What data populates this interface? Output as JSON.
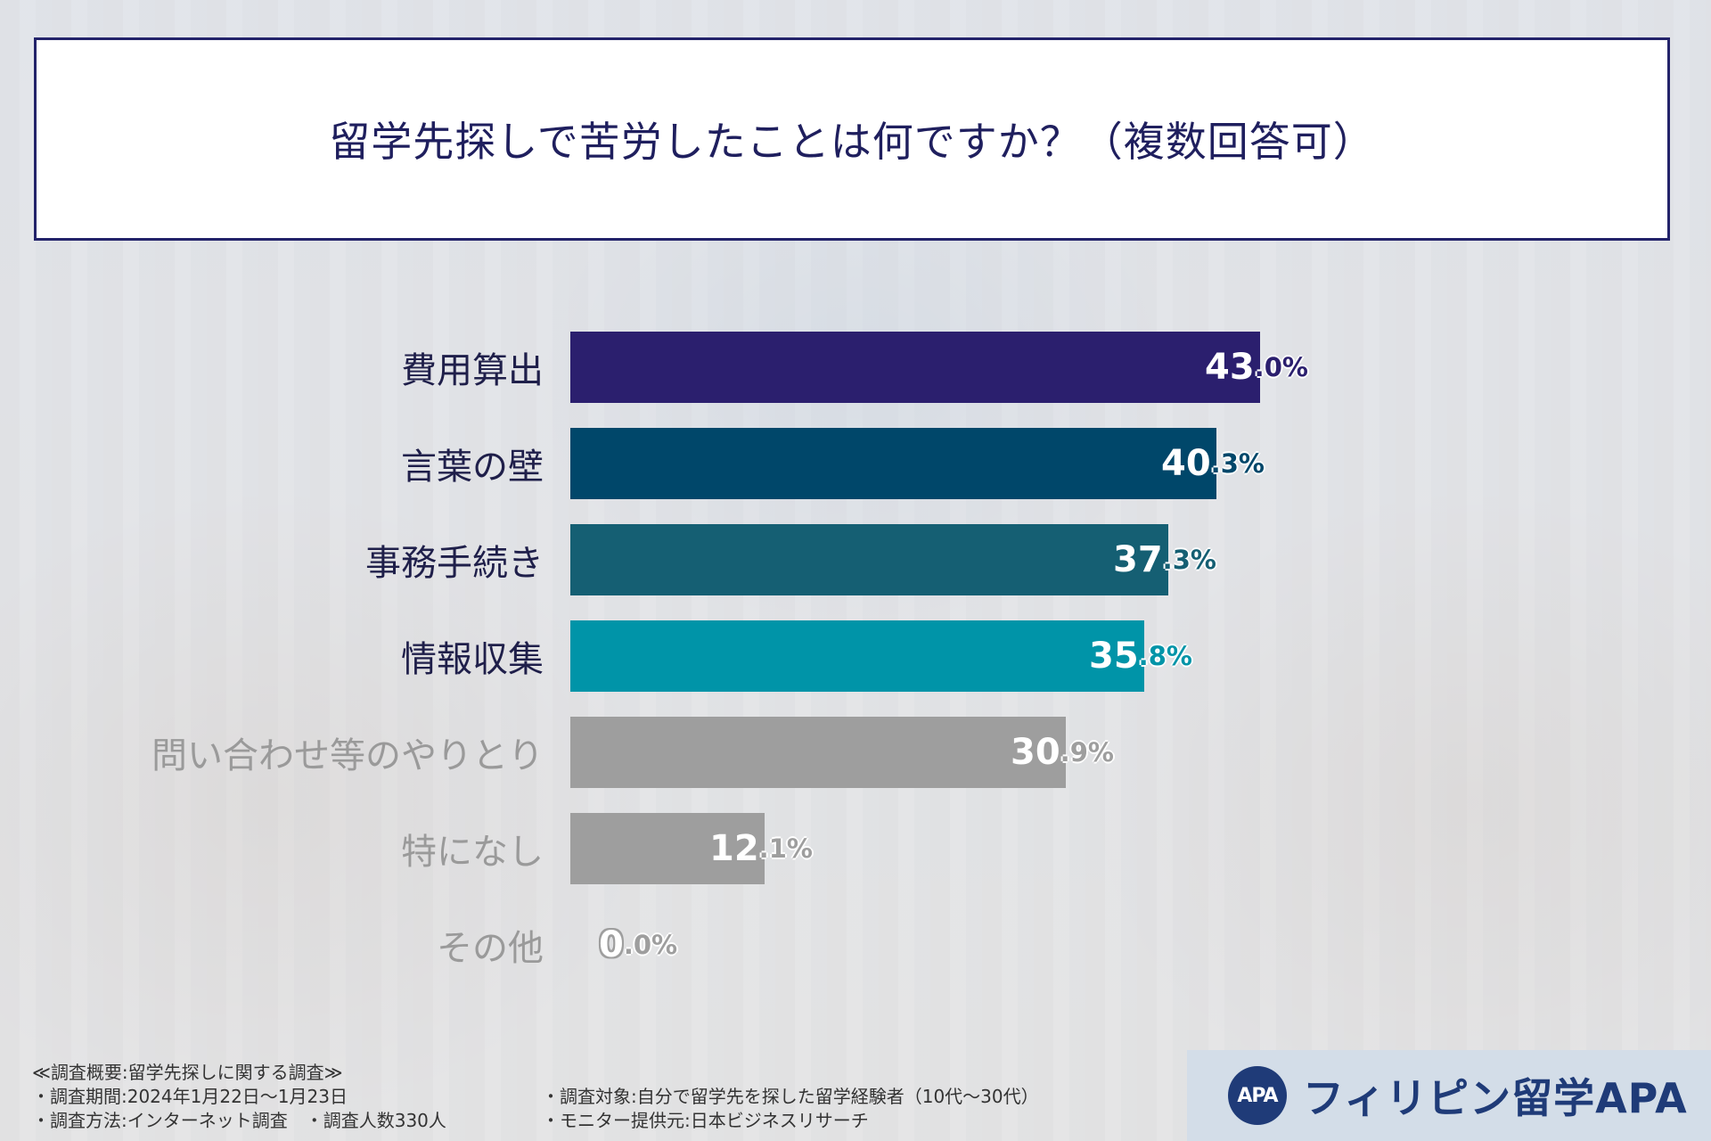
{
  "title": "留学先探しで苦労したことは何ですか？（複数回答可）",
  "chart_data": {
    "type": "bar",
    "orientation": "horizontal",
    "title": "留学先探しで苦労したことは何ですか？（複数回答可）",
    "categories": [
      "費用算出",
      "言葉の壁",
      "事務手続き",
      "情報収集",
      "問い合わせ等のやりとり",
      "特になし",
      "その他"
    ],
    "values": [
      43.0,
      40.3,
      37.3,
      35.8,
      30.9,
      12.1,
      0.0
    ],
    "value_labels": [
      "43.0%",
      "40.3%",
      "37.3%",
      "35.8%",
      "30.9%",
      "12.1%",
      "0.0%"
    ],
    "colors": [
      "#2b1f6e",
      "#00476a",
      "#155f73",
      "#0094a8",
      "#9e9e9e",
      "#9e9e9e",
      "#9e9e9e"
    ],
    "label_colors": [
      "#1f1f4a",
      "#1f1f4a",
      "#1f1f4a",
      "#1f1f4a",
      "#9a9a9a",
      "#9a9a9a",
      "#9a9a9a"
    ],
    "xlim": [
      0,
      50
    ],
    "unit": "%",
    "xlabel": "",
    "ylabel": ""
  },
  "survey": {
    "heading": "≪調査概要:留学先探しに関する調査≫",
    "period": "・調査期間:2024年1月22日〜1月23日",
    "method": "・調査方法:インターネット調査　・調査人数330人",
    "target": "・調査対象:自分で留学先を探した留学経験者（10代〜30代）",
    "provider": "・モニター提供元:日本ビジネスリサーチ"
  },
  "logo": {
    "mark": "APA",
    "text": "フィリピン留学APA",
    "color": "#1f3b78"
  }
}
